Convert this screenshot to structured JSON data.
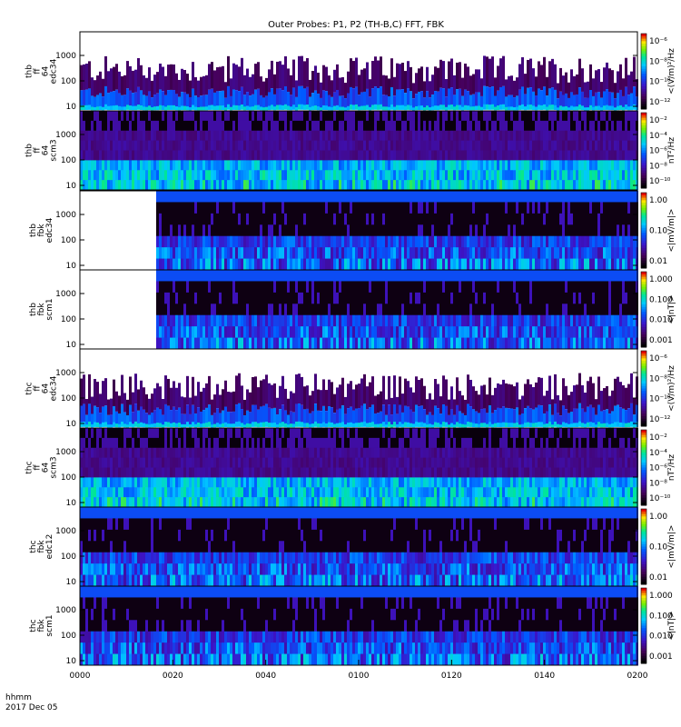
{
  "title": "Outer Probes: P1, P2 (TH-B,C) FFT, FBK",
  "footer": {
    "line1": "hhmm",
    "line2": "2017 Dec 05"
  },
  "chart_data": {
    "type": "heatmap",
    "title": "Outer Probes: P1, P2 (TH-B,C) FFT, FBK",
    "x_ticks": [
      "0000",
      "0020",
      "0040",
      "0100",
      "0120",
      "0140",
      "0200"
    ],
    "panels": [
      {
        "name": "thb_ff_64_edc34",
        "ylabel": [
          "thb",
          "ff",
          "64",
          "edc34"
        ],
        "y_ticks": [
          "1000",
          "100",
          "10"
        ],
        "cbar_label": "<(V/m)²/Hz",
        "cbar_ticks": [
          "10⁻⁶",
          "10⁻⁸",
          "10⁻¹⁰",
          "10⁻¹²"
        ]
      },
      {
        "name": "thb_ff_64_scm3",
        "ylabel": [
          "thb",
          "ff",
          "64",
          "scm3"
        ],
        "y_ticks": [
          "1000",
          "100",
          "10"
        ],
        "cbar_label": "nT²/Hz",
        "cbar_ticks": [
          "10⁻²",
          "10⁻⁴",
          "10⁻⁶",
          "10⁻⁸",
          "10⁻¹⁰"
        ]
      },
      {
        "name": "thb_fbk_edc34",
        "ylabel": [
          "thb",
          "fbk",
          "edc34"
        ],
        "y_ticks": [
          "1000",
          "100",
          "10"
        ],
        "cbar_label": "<|mV/m|>",
        "cbar_ticks": [
          "1.00",
          "0.10",
          "0.01"
        ]
      },
      {
        "name": "thb_fbk_scm1",
        "ylabel": [
          "thb",
          "fbk",
          "scm1"
        ],
        "y_ticks": [
          "1000",
          "100",
          "10"
        ],
        "cbar_label": "<|nT|>",
        "cbar_ticks": [
          "1.000",
          "0.100",
          "0.010",
          "0.001"
        ]
      },
      {
        "name": "thc_ff_64_edc34",
        "ylabel": [
          "thc",
          "ff",
          "64",
          "edc34"
        ],
        "y_ticks": [
          "1000",
          "100",
          "10"
        ],
        "cbar_label": "<(V/m)²/Hz",
        "cbar_ticks": [
          "10⁻⁶",
          "10⁻⁸",
          "10⁻¹⁰",
          "10⁻¹²"
        ]
      },
      {
        "name": "thc_ff_64_scm3",
        "ylabel": [
          "thc",
          "ff",
          "64",
          "scm3"
        ],
        "y_ticks": [
          "1000",
          "100",
          "10"
        ],
        "cbar_label": "nT²/Hz",
        "cbar_ticks": [
          "10⁻²",
          "10⁻⁴",
          "10⁻⁶",
          "10⁻⁸",
          "10⁻¹⁰"
        ]
      },
      {
        "name": "thc_fbk_edc12",
        "ylabel": [
          "thc",
          "fbk",
          "edc12"
        ],
        "y_ticks": [
          "1000",
          "100",
          "10"
        ],
        "cbar_label": "<|mV/m|>",
        "cbar_ticks": [
          "1.00",
          "0.10",
          "0.01"
        ]
      },
      {
        "name": "thc_fbk_scm1",
        "ylabel": [
          "thc",
          "fbk",
          "scm1"
        ],
        "y_ticks": [
          "1000",
          "100",
          "10"
        ],
        "cbar_label": "<|nT|>",
        "cbar_ticks": [
          "1.000",
          "0.100",
          "0.010",
          "0.001"
        ]
      }
    ]
  }
}
